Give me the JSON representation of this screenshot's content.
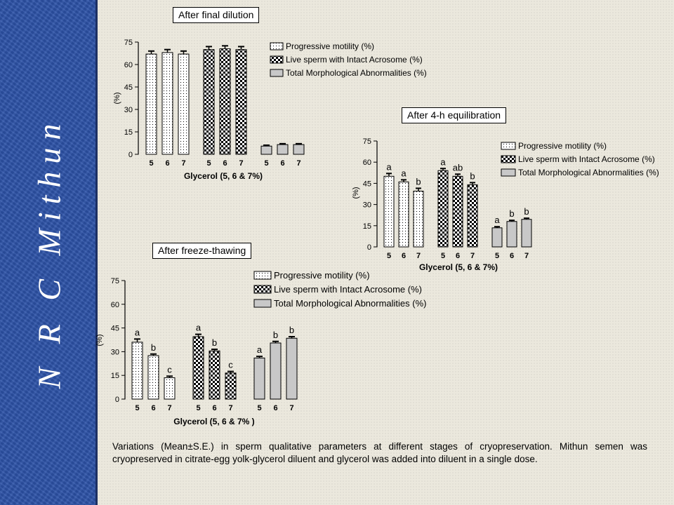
{
  "sidebar": {
    "logo_text": "N R C Mithun"
  },
  "caption": "Variations (Mean±S.E.) in sperm qualitative parameters at different stages of cryopreservation. Mithun semen was cryopreserved in citrate-egg yolk-glycerol diluent and glycerol was added into diluent in a single dose.",
  "colors": {
    "sidebar": "#2c52a8",
    "background": "#ebe8dd",
    "series_3_fill": "#c8c8c8"
  },
  "chart_data": [
    {
      "type": "bar",
      "title": "After final dilution",
      "xlabel": "Glycerol (5, 6 & 7%)",
      "ylabel": "(%)",
      "ylim": [
        0,
        75
      ],
      "yticks": [
        0,
        15,
        30,
        45,
        60,
        75
      ],
      "categories": [
        "5",
        "6",
        "7"
      ],
      "series": [
        {
          "name": "Progressive motility (%)",
          "pattern": "dotted",
          "values": [
            67,
            68,
            67
          ],
          "errors": [
            2,
            2,
            2
          ],
          "letters": [
            "",
            "",
            ""
          ]
        },
        {
          "name": "Live sperm with Intact Acrosome (%)",
          "pattern": "checker",
          "values": [
            70,
            70.5,
            70
          ],
          "errors": [
            2,
            2,
            2
          ],
          "letters": [
            "",
            "",
            ""
          ]
        },
        {
          "name": "Total Morphological Abnormalities (%)",
          "pattern": "gray",
          "values": [
            5.5,
            6.5,
            6.5
          ],
          "errors": [
            0.6,
            0.6,
            0.6
          ],
          "letters": [
            "",
            "",
            ""
          ]
        }
      ]
    },
    {
      "type": "bar",
      "title": "After 4-h equilibration",
      "xlabel": "Glycerol (5, 6 & 7%)",
      "ylabel": "(%)",
      "ylim": [
        0,
        75
      ],
      "yticks": [
        0,
        15,
        30,
        45,
        60,
        75
      ],
      "categories": [
        "5",
        "6",
        "7"
      ],
      "series": [
        {
          "name": "Progressive motility (%)",
          "pattern": "dotted",
          "values": [
            50,
            46,
            39.5
          ],
          "errors": [
            2,
            1.5,
            2
          ],
          "letters": [
            "a",
            "a",
            "b"
          ]
        },
        {
          "name": "Live sperm with Intact Acrosome (%)",
          "pattern": "checker",
          "values": [
            54,
            50,
            44
          ],
          "errors": [
            1.5,
            1.5,
            1.5
          ],
          "letters": [
            "a",
            "ab",
            "b"
          ]
        },
        {
          "name": "Total Morphological Abnormalities (%)",
          "pattern": "gray",
          "values": [
            13.5,
            18,
            19.5
          ],
          "errors": [
            0.8,
            0.8,
            0.8
          ],
          "letters": [
            "a",
            "b",
            "b"
          ]
        }
      ]
    },
    {
      "type": "bar",
      "title": "After freeze-thawing",
      "xlabel": "Glycerol (5, 6 & 7% )",
      "ylabel": "(%)",
      "ylim": [
        0,
        75
      ],
      "yticks": [
        0,
        15,
        30,
        45,
        60,
        75
      ],
      "categories": [
        "5",
        "6",
        "7"
      ],
      "series": [
        {
          "name": "Progressive motility (%)",
          "pattern": "dotted",
          "values": [
            36,
            27.5,
            13.5
          ],
          "errors": [
            2,
            1,
            1
          ],
          "letters": [
            "a",
            "b",
            "c"
          ]
        },
        {
          "name": "Live sperm with Intact Acrosome (%)",
          "pattern": "checker",
          "values": [
            39.5,
            30.5,
            16.5
          ],
          "errors": [
            1.5,
            1,
            1
          ],
          "letters": [
            "a",
            "b",
            "c"
          ]
        },
        {
          "name": "Total Morphological Abnormalities (%)",
          "pattern": "gray",
          "values": [
            26,
            35.5,
            38.5
          ],
          "errors": [
            1,
            1,
            1
          ],
          "letters": [
            "a",
            "b",
            "b"
          ]
        }
      ]
    }
  ]
}
